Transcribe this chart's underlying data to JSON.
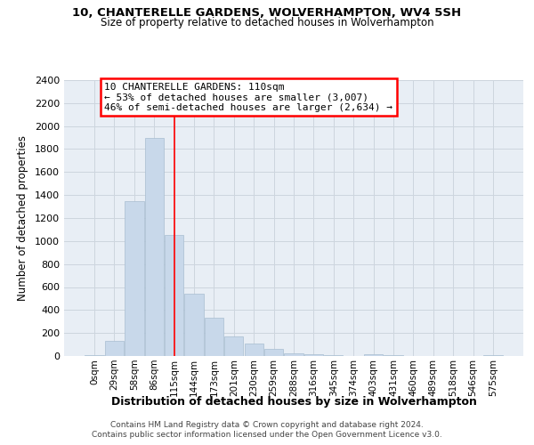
{
  "title1": "10, CHANTERELLE GARDENS, WOLVERHAMPTON, WV4 5SH",
  "title2": "Size of property relative to detached houses in Wolverhampton",
  "xlabel": "Distribution of detached houses by size in Wolverhampton",
  "ylabel": "Number of detached properties",
  "footnote1": "Contains HM Land Registry data © Crown copyright and database right 2024.",
  "footnote2": "Contains public sector information licensed under the Open Government Licence v3.0.",
  "bar_labels": [
    "0sqm",
    "29sqm",
    "58sqm",
    "86sqm",
    "115sqm",
    "144sqm",
    "173sqm",
    "201sqm",
    "230sqm",
    "259sqm",
    "288sqm",
    "316sqm",
    "345sqm",
    "374sqm",
    "403sqm",
    "431sqm",
    "460sqm",
    "489sqm",
    "518sqm",
    "546sqm",
    "575sqm"
  ],
  "bar_values": [
    10,
    130,
    1350,
    1900,
    1050,
    540,
    330,
    170,
    110,
    60,
    20,
    15,
    5,
    2,
    15,
    5,
    2,
    2,
    0,
    2,
    10
  ],
  "bar_color": "#c8d8ea",
  "bar_edge_color": "#a8bdd0",
  "grid_color": "#cdd5de",
  "bg_color": "#e8eef5",
  "red_line_x": 4,
  "annotation_line1": "10 CHANTERELLE GARDENS: 110sqm",
  "annotation_line2": "← 53% of detached houses are smaller (3,007)",
  "annotation_line3": "46% of semi-detached houses are larger (2,634) →",
  "ylim": [
    0,
    2400
  ],
  "yticks": [
    0,
    200,
    400,
    600,
    800,
    1000,
    1200,
    1400,
    1600,
    1800,
    2000,
    2200,
    2400
  ],
  "figsize": [
    6.0,
    5.0
  ],
  "dpi": 100
}
